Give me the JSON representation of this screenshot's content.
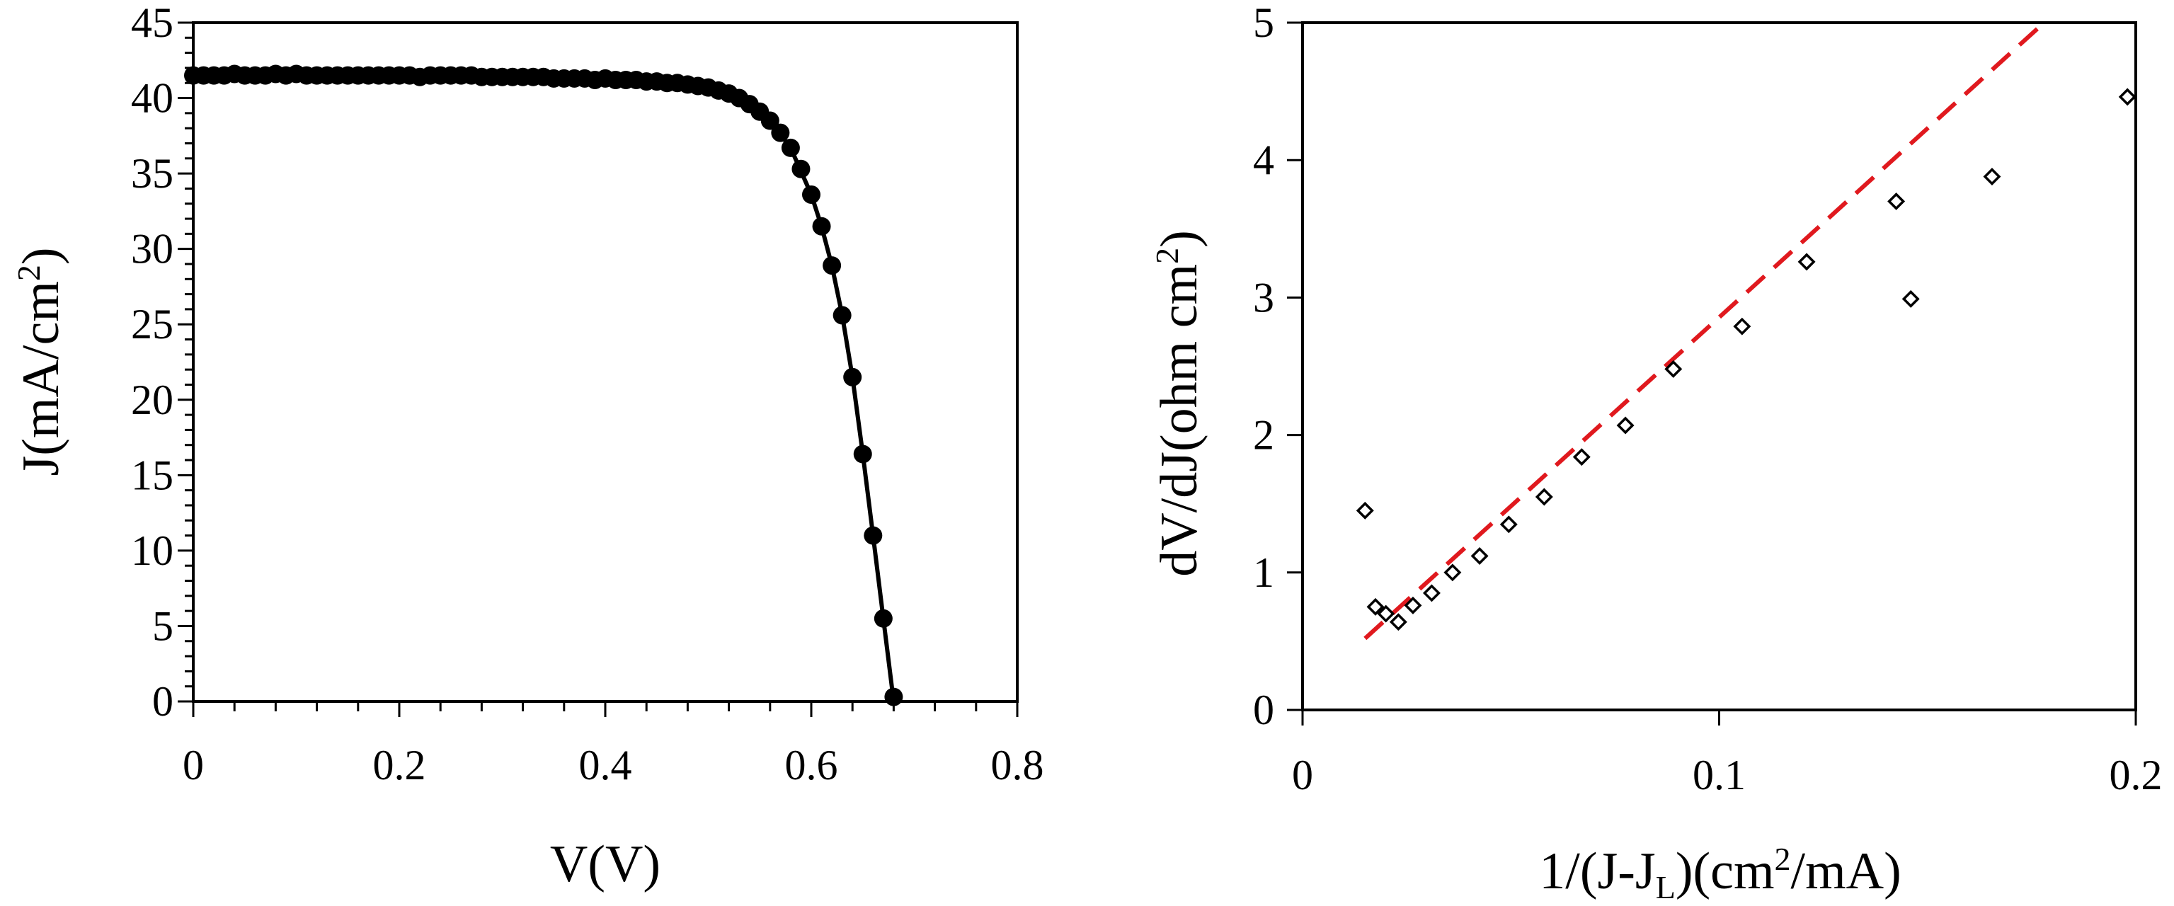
{
  "chart_data": [
    {
      "type": "line",
      "xlabel": "V(V)",
      "ylabel": {
        "base": "J(mA/cm",
        "sup": "2",
        "tail": ")"
      },
      "xlim": [
        0,
        0.8
      ],
      "ylim": [
        0,
        45
      ],
      "xticks": [
        "0",
        "0.2",
        "0.4",
        "0.6",
        "0.8"
      ],
      "yticks": [
        "0",
        "5",
        "10",
        "15",
        "20",
        "25",
        "30",
        "35",
        "40",
        "45"
      ],
      "grid": false,
      "legend": "none",
      "series": [
        {
          "style": "markers",
          "color": "#000000",
          "x": [
            0.0,
            0.01,
            0.02,
            0.03,
            0.04,
            0.05,
            0.06,
            0.07,
            0.08,
            0.09,
            0.1,
            0.11,
            0.12,
            0.13,
            0.14,
            0.15,
            0.16,
            0.17,
            0.18,
            0.19,
            0.2,
            0.21,
            0.22,
            0.23,
            0.24,
            0.25,
            0.26,
            0.27,
            0.28,
            0.29,
            0.3,
            0.31,
            0.32,
            0.33,
            0.34,
            0.35,
            0.36,
            0.37,
            0.38,
            0.39,
            0.4,
            0.41,
            0.42,
            0.43,
            0.44,
            0.45,
            0.46,
            0.47,
            0.48,
            0.49,
            0.5,
            0.51,
            0.52,
            0.53,
            0.54,
            0.55,
            0.56,
            0.57,
            0.58,
            0.59,
            0.6,
            0.61,
            0.62,
            0.63,
            0.64,
            0.65,
            0.66,
            0.67,
            0.68
          ],
          "y": [
            41.5,
            41.5,
            41.5,
            41.5,
            41.6,
            41.5,
            41.5,
            41.5,
            41.6,
            41.5,
            41.6,
            41.5,
            41.5,
            41.5,
            41.5,
            41.5,
            41.5,
            41.5,
            41.5,
            41.5,
            41.5,
            41.5,
            41.4,
            41.5,
            41.5,
            41.5,
            41.5,
            41.5,
            41.4,
            41.4,
            41.4,
            41.4,
            41.4,
            41.4,
            41.4,
            41.3,
            41.3,
            41.3,
            41.3,
            41.2,
            41.3,
            41.2,
            41.2,
            41.2,
            41.1,
            41.1,
            41.0,
            41.0,
            40.9,
            40.8,
            40.7,
            40.5,
            40.3,
            40.0,
            39.6,
            39.1,
            38.5,
            37.7,
            36.7,
            35.3,
            33.6,
            31.5,
            28.9,
            25.6,
            21.5,
            16.4,
            11.0,
            5.5,
            0.3
          ]
        },
        {
          "style": "line",
          "color": "#000000",
          "x": [
            0.0,
            0.1,
            0.2,
            0.3,
            0.4,
            0.45,
            0.5,
            0.52,
            0.54,
            0.56,
            0.58,
            0.6,
            0.61,
            0.62,
            0.63,
            0.64,
            0.65,
            0.66,
            0.67,
            0.68
          ],
          "y": [
            41.5,
            41.5,
            41.5,
            41.4,
            41.3,
            41.1,
            40.7,
            40.3,
            39.6,
            38.5,
            36.7,
            33.6,
            31.5,
            28.9,
            25.6,
            21.5,
            16.4,
            11.0,
            5.5,
            0.0
          ]
        }
      ]
    },
    {
      "type": "scatter",
      "xlabel": {
        "a": "1/(J-J",
        "sub": "L",
        "b": ")(cm",
        "sup": "2",
        "c": "/mA)"
      },
      "ylabel": {
        "base": "dV/dJ(ohm cm",
        "sup": "2",
        "tail": ")"
      },
      "xlim": [
        0,
        0.2
      ],
      "ylim": [
        0,
        5
      ],
      "xticks": [
        "0",
        "0.1",
        "0.2"
      ],
      "yticks": [
        "0",
        "1",
        "2",
        "3",
        "4",
        "5"
      ],
      "grid": false,
      "legend": "none",
      "series": [
        {
          "style": "open-diamond",
          "color": "#000000",
          "x": [
            0.015,
            0.0175,
            0.02,
            0.023,
            0.0265,
            0.031,
            0.036,
            0.0425,
            0.0495,
            0.058,
            0.067,
            0.0775,
            0.089,
            0.1055,
            0.121,
            0.1425,
            0.146,
            0.1655,
            0.198
          ],
          "y": [
            1.45,
            0.75,
            0.7,
            0.64,
            0.76,
            0.85,
            1.0,
            1.12,
            1.35,
            1.55,
            1.84,
            2.07,
            2.48,
            2.79,
            3.26,
            3.7,
            2.99,
            3.88,
            4.46
          ]
        },
        {
          "style": "dashed-line",
          "color": "#e0191e",
          "x": [
            0.015,
            0.178
          ],
          "y": [
            0.52,
            5.0
          ]
        }
      ]
    }
  ]
}
